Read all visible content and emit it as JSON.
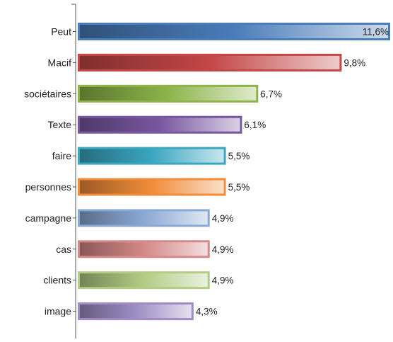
{
  "chart_data": {
    "type": "bar",
    "orientation": "horizontal",
    "title": "",
    "xlabel": "",
    "ylabel": "",
    "xlim": [
      0,
      11.6
    ],
    "grid": false,
    "legend": "none",
    "categories": [
      "Peut",
      "Macif",
      "sociétaires",
      "Texte",
      "faire",
      "personnes",
      "campagne",
      "cas",
      "clients",
      "image"
    ],
    "values": [
      11.6,
      9.8,
      6.7,
      6.1,
      5.5,
      5.5,
      4.9,
      4.9,
      4.9,
      4.3
    ],
    "value_labels": [
      "11,6%",
      "9,8%",
      "6,7%",
      "6,1%",
      "5,5%",
      "5,5%",
      "4,9%",
      "4,9%",
      "4,9%",
      "4,3%"
    ],
    "colors": [
      "#4a7cba",
      "#c44646",
      "#8cb44a",
      "#7857a0",
      "#3aa6c0",
      "#f08c3a",
      "#8aa8d4",
      "#d48888",
      "#b2cc84",
      "#9e8cc4"
    ]
  }
}
